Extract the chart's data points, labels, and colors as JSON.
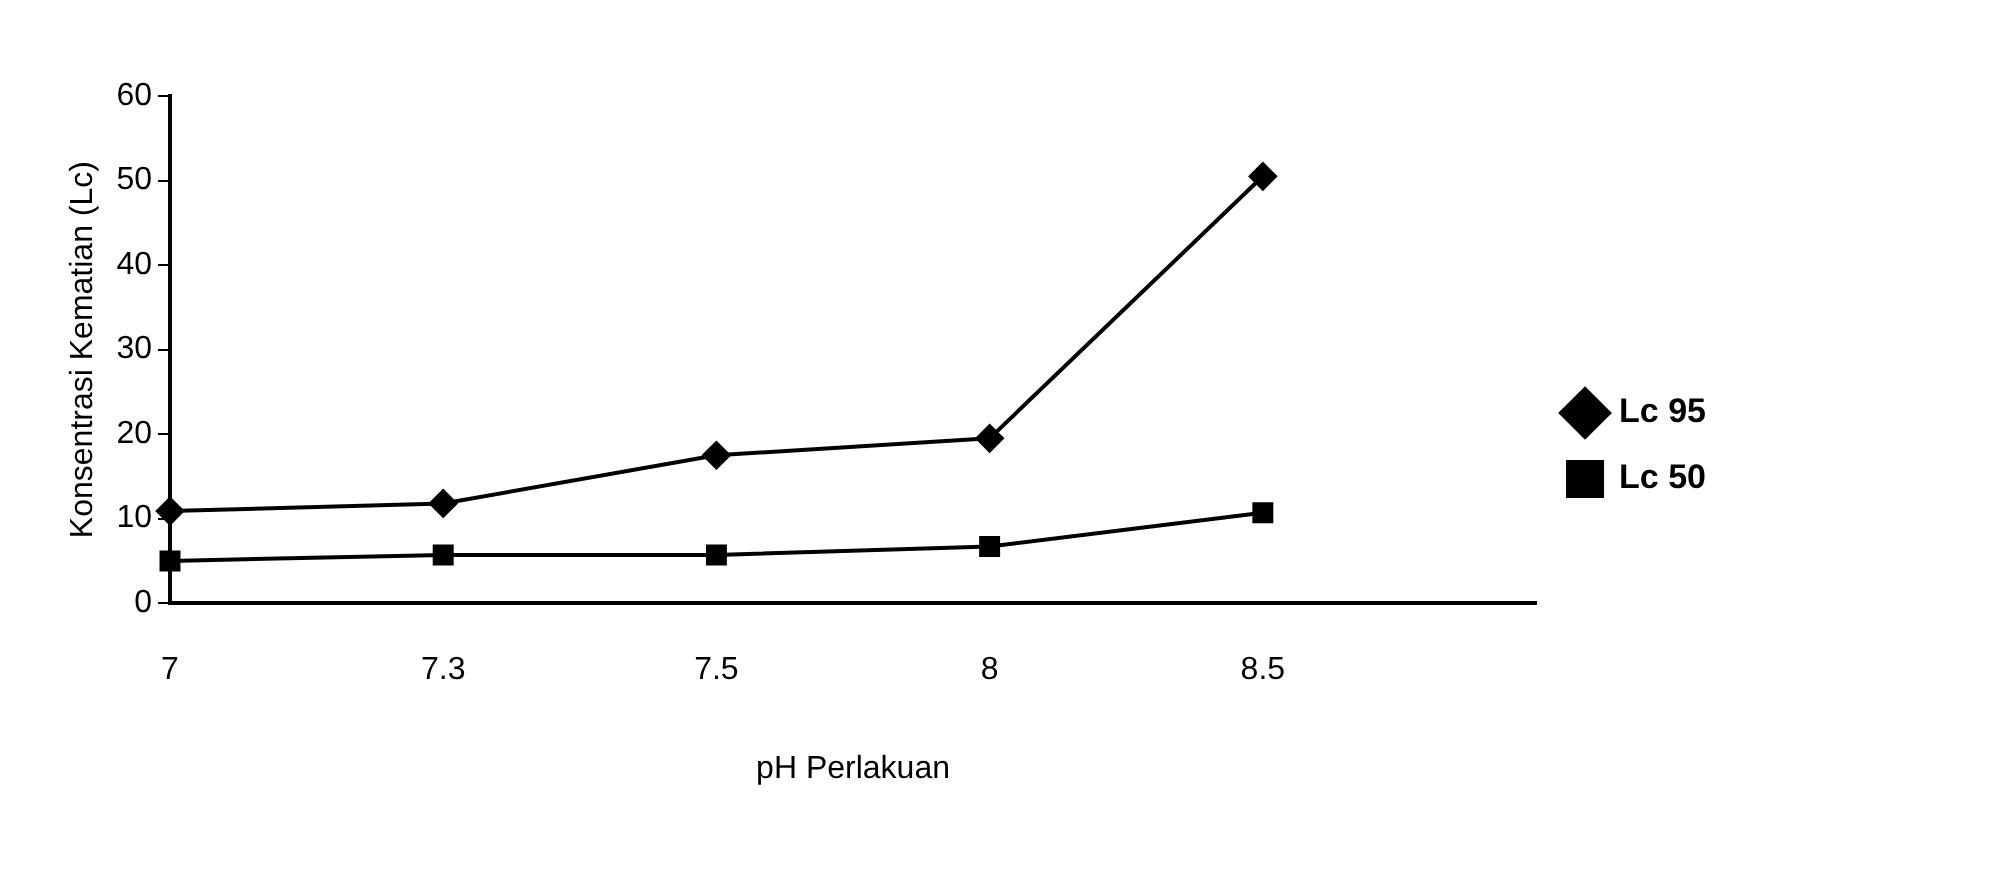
{
  "chart_data": {
    "type": "line",
    "xlabel": "pH Perlakuan",
    "ylabel": "Konsentrasi Kematian (Lc)",
    "categories": [
      "7",
      "7.3",
      "7.5",
      "8",
      "8.5",
      null
    ],
    "series": [
      {
        "name": "Lc 95",
        "color": "#000000",
        "marker": "diamond",
        "values": [
          10.9,
          11.8,
          17.5,
          19.5,
          50.5,
          null
        ]
      },
      {
        "name": "Lc 50",
        "color": "#000000",
        "marker": "square",
        "values": [
          5.0,
          5.7,
          5.7,
          6.7,
          10.7,
          null
        ]
      }
    ],
    "ylim": [
      0,
      60
    ],
    "yticks": [
      0,
      10,
      20,
      30,
      40,
      50,
      60
    ],
    "grid": false,
    "legend": "right"
  }
}
